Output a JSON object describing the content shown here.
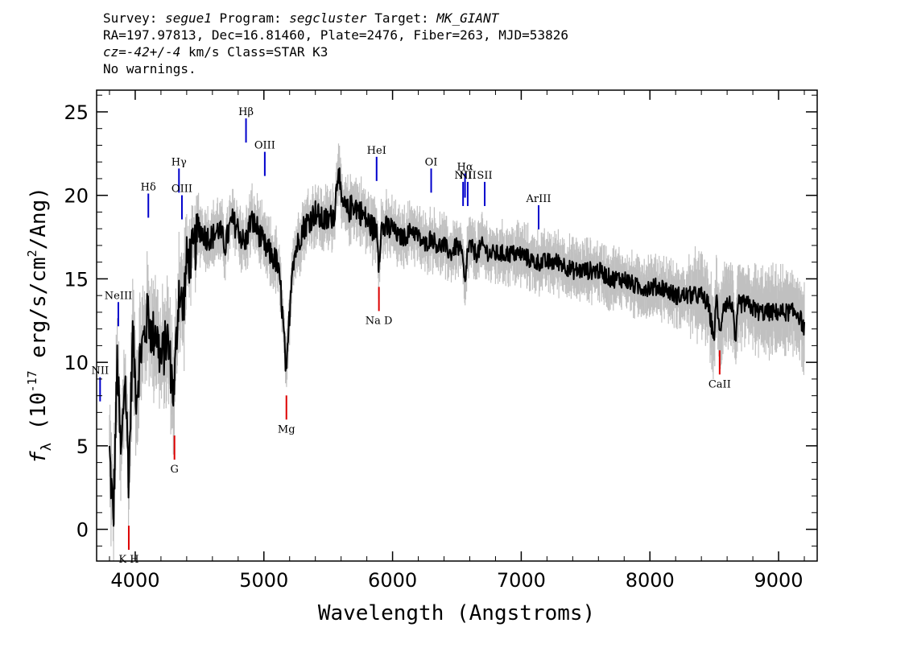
{
  "header": {
    "survey_label": "Survey:",
    "survey": "segue1",
    "program_label": "Program:",
    "program": "segcluster",
    "target_label": "Target:",
    "target": "MK_GIANT",
    "line2": "RA=197.97813, Dec=16.81460, Plate=2476, Fiber=263, MJD=53826",
    "cz_label": "cz=",
    "cz_value": "-42+/-4",
    "cz_rest": " km/s Class=STAR K3",
    "line4": "No warnings."
  },
  "chart_data": {
    "type": "line",
    "xlabel": "Wavelength (Angstroms)",
    "ylabel_prefix": "f",
    "ylabel_sub": "λ",
    "ylabel_mid": " (10",
    "ylabel_exp": "-17",
    "ylabel_tail": " erg/s/cm",
    "ylabel_exp2": "2",
    "ylabel_end": "/Ang)",
    "xlim": [
      3700,
      9300
    ],
    "ylim": [
      -1.9,
      26.3
    ],
    "xticks": [
      4000,
      5000,
      6000,
      7000,
      8000,
      9000
    ],
    "yticks": [
      0,
      5,
      10,
      15,
      20,
      25
    ],
    "colors": {
      "flux": "#000000",
      "noise": "#c0c0c0",
      "emission": "#0000cc",
      "absorption": "#dd0000"
    },
    "spectrum": {
      "x": [
        3800,
        3830,
        3860,
        3890,
        3920,
        3950,
        3980,
        4010,
        4040,
        4070,
        4100,
        4130,
        4160,
        4200,
        4250,
        4300,
        4340,
        4370,
        4400,
        4450,
        4500,
        4550,
        4600,
        4650,
        4700,
        4750,
        4800,
        4850,
        4900,
        4950,
        5000,
        5050,
        5100,
        5130,
        5160,
        5175,
        5190,
        5220,
        5260,
        5300,
        5350,
        5400,
        5450,
        5500,
        5550,
        5580,
        5600,
        5650,
        5700,
        5750,
        5800,
        5850,
        5880,
        5893,
        5910,
        5950,
        6000,
        6050,
        6100,
        6150,
        6200,
        6250,
        6300,
        6350,
        6400,
        6450,
        6500,
        6540,
        6563,
        6580,
        6600,
        6650,
        6700,
        6750,
        6800,
        6900,
        7000,
        7100,
        7200,
        7300,
        7400,
        7500,
        7600,
        7700,
        7800,
        7900,
        8000,
        8100,
        8200,
        8300,
        8400,
        8450,
        8498,
        8520,
        8542,
        8570,
        8600,
        8640,
        8662,
        8690,
        8750,
        8850,
        8950,
        9050,
        9150,
        9200
      ],
      "y": [
        4.5,
        0.5,
        10.0,
        4.0,
        9.5,
        3.0,
        11.5,
        8.0,
        10.5,
        11.5,
        13.0,
        11.5,
        12.0,
        10.0,
        11.5,
        8.0,
        14.5,
        13.0,
        16.0,
        16.5,
        18.0,
        17.5,
        17.5,
        18.0,
        17.0,
        18.5,
        18.0,
        17.0,
        18.5,
        18.0,
        17.0,
        16.5,
        16.0,
        14.5,
        11.0,
        9.0,
        11.5,
        16.0,
        17.0,
        18.0,
        18.5,
        19.0,
        18.5,
        18.5,
        19.0,
        22.0,
        19.5,
        19.0,
        19.5,
        19.0,
        18.5,
        18.0,
        18.0,
        16.0,
        18.0,
        18.0,
        18.0,
        17.5,
        17.5,
        18.0,
        17.5,
        17.0,
        17.5,
        17.0,
        17.0,
        16.5,
        17.0,
        16.5,
        14.5,
        16.5,
        17.0,
        16.5,
        17.0,
        16.5,
        16.5,
        16.5,
        16.5,
        16.0,
        16.0,
        16.0,
        15.5,
        15.5,
        15.5,
        15.0,
        15.0,
        14.5,
        14.5,
        14.5,
        14.0,
        14.0,
        14.0,
        13.5,
        11.5,
        14.0,
        11.5,
        13.5,
        13.5,
        13.5,
        11.0,
        13.5,
        13.5,
        13.0,
        13.0,
        13.0,
        13.0,
        12.0
      ]
    },
    "emission_lines": [
      {
        "label": "NII",
        "x": 3727,
        "label_y": 9.3
      },
      {
        "label": "NeIII",
        "x": 3869,
        "label_y": 13.8
      },
      {
        "label": "Hδ",
        "x": 4102,
        "label_y": 20.3
      },
      {
        "label": "Hγ",
        "x": 4340,
        "label_y": 21.8
      },
      {
        "label": "OIII",
        "x": 4363,
        "label_y": 20.2
      },
      {
        "label": "Hβ",
        "x": 4861,
        "label_y": 24.8
      },
      {
        "label": "OIII",
        "x": 5007,
        "label_y": 22.8
      },
      {
        "label": "HeI",
        "x": 5876,
        "label_y": 22.5
      },
      {
        "label": "OI",
        "x": 6300,
        "label_y": 21.8
      },
      {
        "label": "NII",
        "x": 6548,
        "label_y": 21.0
      },
      {
        "label": "Hα",
        "x": 6563,
        "label_y": 21.5
      },
      {
        "label": "NII",
        "x": 6584,
        "label_y": 21.0
      },
      {
        "label": "SII",
        "x": 6716,
        "label_y": 21.0
      },
      {
        "label": "ArIII",
        "x": 7135,
        "label_y": 19.6
      }
    ],
    "absorption_lines": [
      {
        "label": "K H",
        "x": 3950,
        "label_y": -2.0
      },
      {
        "label": "G",
        "x": 4305,
        "label_y": 3.4
      },
      {
        "label": "Mg",
        "x": 5175,
        "label_y": 5.8
      },
      {
        "label": "Na D",
        "x": 5894,
        "label_y": 12.3
      },
      {
        "label": "CaII",
        "x": 8542,
        "label_y": 8.5
      }
    ]
  }
}
